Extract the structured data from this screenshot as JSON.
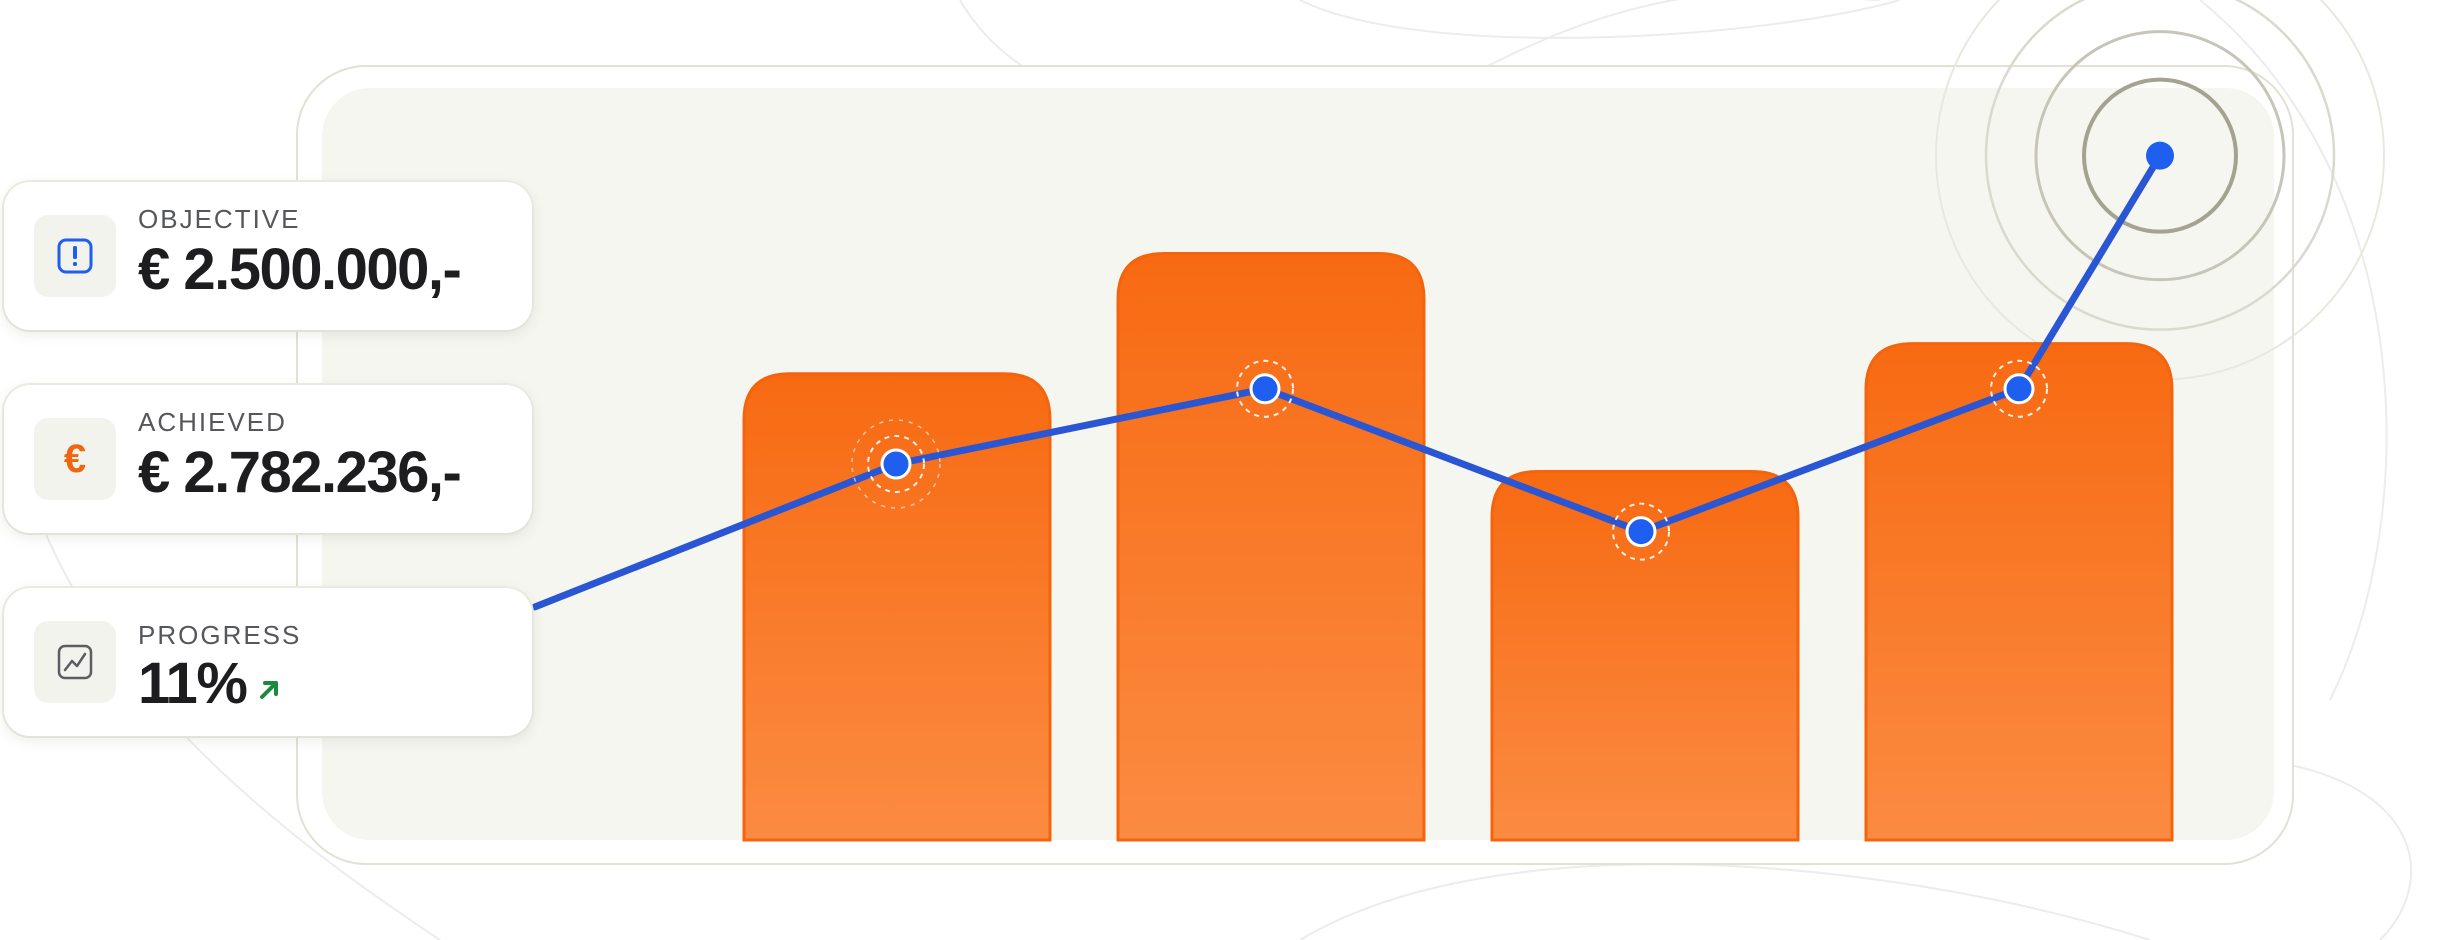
{
  "colors": {
    "bar": "#f76a12",
    "bar_light": "#fb8b42",
    "line": "#2b56d3",
    "point": "#1f5ff0",
    "panel": "#f6f6f1",
    "trend_up": "#1c8a3e",
    "warning_icon": "#1f5ff0",
    "euro_icon": "#f0650f"
  },
  "stats": {
    "objective": {
      "label": "OBJECTIVE",
      "value": "€ 2.500.000,-",
      "icon": "alert-icon"
    },
    "achieved": {
      "label": "ACHIEVED",
      "value": "€ 2.782.236,-",
      "icon": "euro-icon"
    },
    "progress": {
      "label": "PROGRESS",
      "value": "11%",
      "icon": "line-chart-icon",
      "trend_icon": "arrow-up-right-icon"
    }
  },
  "chart_data": {
    "type": "bar",
    "note_grid": false,
    "ylim": [
      0,
      100
    ],
    "bars": [
      {
        "value": 62
      },
      {
        "value": 78
      },
      {
        "value": 49
      },
      {
        "value": 66
      }
    ],
    "line": {
      "values": [
        31,
        50,
        60,
        41,
        60,
        91
      ],
      "highlight_last": true
    }
  }
}
